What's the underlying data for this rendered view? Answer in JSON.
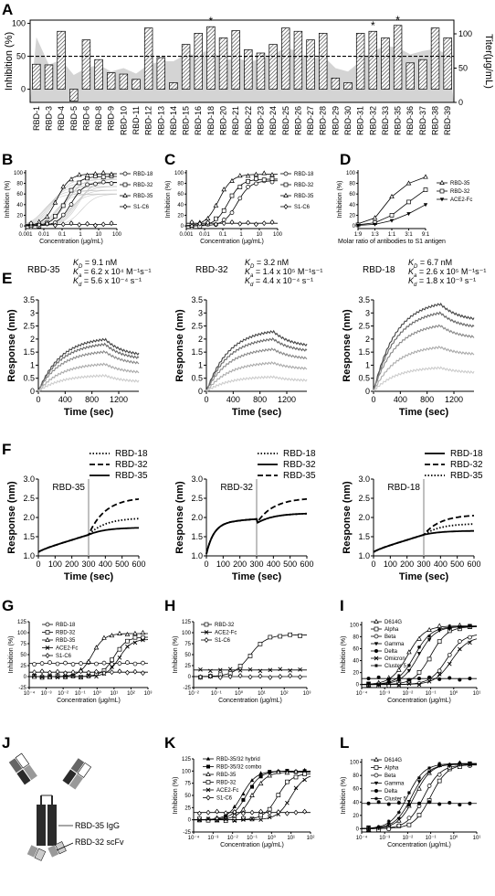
{
  "panel_letters": [
    "A",
    "B",
    "C",
    "D",
    "E",
    "F",
    "G",
    "H",
    "I",
    "J",
    "K",
    "L"
  ],
  "chart_data": [
    {
      "id": "A",
      "type": "bar",
      "categories": [
        "RBD-1",
        "RBD-3",
        "RBD-4",
        "RBD-5",
        "RBD-6",
        "RBD-8",
        "RBD-9",
        "RBD-10",
        "RBD-11",
        "RBD-12",
        "RBD-13",
        "RBD-14",
        "RBD-15",
        "RBD-16",
        "RBD-18",
        "RBD-20",
        "RBD-21",
        "RBD-22",
        "RBD-23",
        "RBD-24",
        "RBD-25",
        "RBD-26",
        "RBD-27",
        "RBD-28",
        "RBD-29",
        "RBD-30",
        "RBD-31",
        "RBD-32",
        "RBD-33",
        "RBD-35",
        "RBD-36",
        "RBD-37",
        "RBD-38",
        "RBD-39"
      ],
      "values": [
        38,
        37,
        88,
        -18,
        75,
        45,
        25,
        23,
        15,
        93,
        48,
        10,
        68,
        85,
        95,
        78,
        89,
        60,
        55,
        68,
        93,
        88,
        75,
        85,
        17,
        10,
        85,
        88,
        78,
        97,
        40,
        45,
        93,
        78
      ],
      "titer": [
        95,
        55,
        62,
        40,
        50,
        55,
        45,
        50,
        42,
        55,
        60,
        60,
        70,
        70,
        78,
        60,
        65,
        60,
        62,
        70,
        80,
        74,
        62,
        68,
        50,
        45,
        60,
        75,
        82,
        80,
        70,
        75,
        78,
        70
      ],
      "starred": [
        "RBD-18",
        "RBD-32",
        "RBD-35"
      ],
      "ylabel": "Inhibition (%)",
      "y2label": "Titer(μg/mL)",
      "yticks": [
        0,
        50,
        100
      ],
      "y2ticks": [
        0,
        50,
        100
      ],
      "ylim": [
        -20,
        105
      ],
      "y2lim": [
        0,
        120
      ],
      "threshold": 50
    },
    {
      "id": "B",
      "type": "line",
      "xscale": "log",
      "xlabel": "Concentration (μg/mL)",
      "ylabel": "Inhibition (%)",
      "xticks": [
        "0.001",
        "0.01",
        "0.1",
        "1",
        "10",
        "100"
      ],
      "yticks": [
        0,
        20,
        40,
        60,
        80,
        100
      ],
      "ylim": [
        -5,
        105
      ],
      "series": [
        {
          "name": "RBD-18",
          "marker": "circle",
          "ec50": 0.3,
          "top": 82
        },
        {
          "name": "RBD-32",
          "marker": "square",
          "ec50": 0.15,
          "top": 93
        },
        {
          "name": "RBD-35",
          "marker": "triangle",
          "ec50": 0.05,
          "top": 98
        },
        {
          "name": "S1-C6",
          "marker": "diamond",
          "ec50": null,
          "top": 3
        }
      ]
    },
    {
      "id": "C",
      "type": "line",
      "xscale": "log",
      "xlabel": "Concentration (μg/mL)",
      "ylabel": "Inhibition (%)",
      "xticks": [
        "0.001",
        "0.01",
        "0.1",
        "1",
        "10",
        "100"
      ],
      "yticks": [
        0,
        20,
        40,
        60,
        80,
        100
      ],
      "ylim": [
        -5,
        105
      ],
      "series": [
        {
          "name": "RBD-18",
          "marker": "circle",
          "ec50": 0.6,
          "top": 85
        },
        {
          "name": "RBD-32",
          "marker": "square",
          "ec50": 0.2,
          "top": 88
        },
        {
          "name": "RBD-35",
          "marker": "triangle",
          "ec50": 0.06,
          "top": 97
        },
        {
          "name": "S1-C6",
          "marker": "diamond",
          "ec50": null,
          "top": 5
        }
      ]
    },
    {
      "id": "D",
      "type": "line",
      "xlabel": "Molar ratio of antibodies to S1 antigen",
      "ylabel": "Inhibition (%)",
      "xticks": [
        "1:9",
        "1:3",
        "1:1",
        "3:1",
        "9:1"
      ],
      "yticks": [
        0,
        20,
        40,
        60,
        80,
        100
      ],
      "ylim": [
        -5,
        105
      ],
      "series": [
        {
          "name": "RBD-35",
          "marker": "triangle",
          "values": [
            4,
            15,
            55,
            80,
            92
          ]
        },
        {
          "name": "RBD-32",
          "marker": "square",
          "values": [
            2,
            6,
            20,
            45,
            68
          ]
        },
        {
          "name": "ACE2-Fc",
          "marker": "triangle-down",
          "values": [
            1,
            3,
            10,
            23,
            40
          ]
        }
      ]
    },
    {
      "id": "E1",
      "type": "line",
      "name": "RBD-35",
      "kd": "K",
      "kd_sub": "D",
      "kd_val": " = 9.1 nM",
      "ka": "K",
      "ka_sub": "a",
      "ka_val": " = 6.2 x 10⁴ M⁻¹s⁻¹",
      "kdis": "K",
      "kdis_sub": "d",
      "kdis_val": " = 5.6 x 10⁻⁴ s⁻¹",
      "xlabel": "Time (sec)",
      "ylabel": "Response (nm)",
      "xticks": [
        0,
        400,
        800,
        1200
      ],
      "yticks": [
        0,
        0.5,
        1,
        1.5,
        2,
        2.5,
        3,
        3.5
      ],
      "xlim": [
        0,
        1500
      ],
      "ylim": [
        0,
        3.5
      ],
      "peaks": [
        2.0,
        1.8,
        1.5,
        1.05,
        0.6
      ],
      "dissociation_end": [
        1.35,
        1.2,
        1.0,
        0.7,
        0.35
      ]
    },
    {
      "id": "E2",
      "type": "line",
      "name": "RBD-32",
      "kd": "K",
      "kd_sub": "D",
      "kd_val": " = 3.2 nM",
      "ka": "K",
      "ka_sub": "a",
      "ka_val": " = 1.4 x 10⁵ M⁻¹s⁻¹",
      "kdis": "K",
      "kdis_sub": "d",
      "kdis_val": " = 4.4 x 10⁻⁴ s⁻¹",
      "xlabel": "Time (sec)",
      "ylabel": "Response (nm)",
      "xticks": [
        0,
        400,
        800,
        1200
      ],
      "yticks": [
        0,
        0.5,
        1,
        1.5,
        2,
        2.5,
        3,
        3.5
      ],
      "xlim": [
        0,
        1500
      ],
      "ylim": [
        0,
        3.5
      ],
      "peaks": [
        2.3,
        2.0,
        1.6,
        1.1,
        0.55
      ],
      "dissociation_end": [
        1.7,
        1.5,
        1.2,
        0.85,
        0.4
      ]
    },
    {
      "id": "E3",
      "type": "line",
      "name": "RBD-18",
      "kd": "K",
      "kd_sub": "D",
      "kd_val": " = 6.7 nM",
      "ka": "K",
      "ka_sub": "a",
      "ka_val": " = 2.6 x 10⁵ M⁻¹s⁻¹",
      "kdis": "K",
      "kdis_sub": "d",
      "kdis_val": " = 1.8 x 10⁻³ s⁻¹",
      "xlabel": "Time (sec)",
      "ylabel": "Response (nm)",
      "xticks": [
        0,
        400,
        800,
        1200
      ],
      "yticks": [
        0,
        0.5,
        1,
        1.5,
        2,
        2.5,
        3,
        3.5
      ],
      "xlim": [
        0,
        1500
      ],
      "ylim": [
        0,
        3.5
      ],
      "peaks": [
        3.35,
        3.0,
        2.5,
        1.7,
        0.9
      ],
      "dissociation_end": [
        2.7,
        2.4,
        2.0,
        1.4,
        0.7
      ]
    },
    {
      "id": "F1",
      "type": "line",
      "name": "RBD-35",
      "xlabel": "Time (sec)",
      "ylabel": "Response (nm)",
      "xticks": [
        0,
        100,
        200,
        300,
        400,
        500,
        600
      ],
      "yticks": [
        1.0,
        1.5,
        2.0,
        2.5,
        3.0
      ],
      "xlim": [
        0,
        600
      ],
      "ylim": [
        1.0,
        3.0
      ],
      "series": [
        {
          "name": "RBD-18",
          "style": "dotted",
          "end": 1.97
        },
        {
          "name": "RBD-32",
          "style": "dashed",
          "end": 2.48
        },
        {
          "name": "RBD-35",
          "style": "solid",
          "end": 1.73
        }
      ]
    },
    {
      "id": "F2",
      "type": "line",
      "name": "RBD-32",
      "xlabel": "Time (sec)",
      "ylabel": "Response (nm)",
      "xticks": [
        0,
        100,
        200,
        300,
        400,
        500,
        600
      ],
      "yticks": [
        1.0,
        1.5,
        2.0,
        2.5,
        3.0
      ],
      "xlim": [
        0,
        600
      ],
      "ylim": [
        1.0,
        3.0
      ],
      "series": [
        {
          "name": "RBD-18",
          "style": "dotted",
          "end": 2.1
        },
        {
          "name": "RBD-32",
          "style": "solid",
          "end": 2.1
        },
        {
          "name": "RBD-35",
          "style": "dashed",
          "end": 2.48
        }
      ]
    },
    {
      "id": "F3",
      "type": "line",
      "name": "RBD-18",
      "xlabel": "Time (sec)",
      "ylabel": "Response (nm)",
      "xticks": [
        0,
        100,
        200,
        300,
        400,
        500,
        600
      ],
      "yticks": [
        1.0,
        1.5,
        2.0,
        2.5,
        3.0
      ],
      "xlim": [
        0,
        600
      ],
      "ylim": [
        1.0,
        3.0
      ],
      "series": [
        {
          "name": "RBD-18",
          "style": "solid",
          "end": 1.65
        },
        {
          "name": "RBD-32",
          "style": "dashed",
          "end": 2.05
        },
        {
          "name": "RBD-35",
          "style": "dotted",
          "end": 1.83
        }
      ]
    },
    {
      "id": "G",
      "type": "line",
      "xscale": "log",
      "xlabel": "Concentration (μg/mL)",
      "ylabel": "Inhibition (%)",
      "xticks": [
        "10⁻⁴",
        "10⁻³",
        "10⁻²",
        "10⁻¹",
        "10⁰",
        "10¹",
        "10²",
        "10³"
      ],
      "yticks": [
        -25,
        0,
        25,
        50,
        75,
        100,
        125
      ],
      "ylim": [
        -25,
        125
      ],
      "series": [
        {
          "name": "RBD-18",
          "marker": "circle",
          "ec50": null,
          "top": 30
        },
        {
          "name": "RBD-32",
          "marker": "square",
          "ec50": 10,
          "top": 90
        },
        {
          "name": "RBD-35",
          "marker": "triangle",
          "ec50": 0.5,
          "top": 98
        },
        {
          "name": "ACE2-Fc",
          "marker": "x",
          "ec50": 20,
          "top": 85
        },
        {
          "name": "S1-C6",
          "marker": "diamond",
          "ec50": null,
          "top": 10
        }
      ]
    },
    {
      "id": "H",
      "type": "line",
      "xscale": "log",
      "xlabel": "Concentration (μg/mL)",
      "ylabel": "Inhibition (%)",
      "xticks": [
        "10⁻²",
        "10⁻¹",
        "10⁰",
        "10¹",
        "10²",
        "10³"
      ],
      "yticks": [
        -25,
        0,
        25,
        50,
        75,
        100,
        125
      ],
      "ylim": [
        -25,
        125
      ],
      "series": [
        {
          "name": "RBD-32",
          "marker": "square",
          "ec50": 3,
          "top": 95
        },
        {
          "name": "ACE2-Fc",
          "marker": "x",
          "ec50": null,
          "top": 15
        },
        {
          "name": "S1-C6",
          "marker": "diamond",
          "ec50": null,
          "top": 0
        }
      ]
    },
    {
      "id": "I",
      "type": "line",
      "xscale": "log",
      "xlabel": "Concentration (μg/mL)",
      "ylabel": "Inhibition (%)",
      "xticks": [
        "10⁻⁴",
        "10⁻³",
        "10⁻²",
        "10⁻¹",
        "10⁰",
        "10¹"
      ],
      "yticks": [
        0,
        20,
        40,
        60,
        80,
        100
      ],
      "ylim": [
        -5,
        105
      ],
      "series": [
        {
          "name": "D614G",
          "marker": "triangle",
          "ec50": 0.01,
          "top": 98
        },
        {
          "name": "Alpha",
          "marker": "square",
          "ec50": 0.1,
          "top": 97
        },
        {
          "name": "Beta",
          "marker": "circle",
          "ec50": 0.5,
          "top": 85
        },
        {
          "name": "Gamma",
          "marker": "triangle-down",
          "ec50": 0.03,
          "top": 97
        },
        {
          "name": "Delta",
          "marker": "dot",
          "ec50": null,
          "top": 10
        },
        {
          "name": "Omicron",
          "marker": "x",
          "ec50": 0.8,
          "top": 80
        },
        {
          "name": "Cluster 5",
          "marker": "star",
          "ec50": 0.02,
          "top": 97
        }
      ]
    },
    {
      "id": "K",
      "type": "line",
      "xscale": "log",
      "xlabel": "Concentration (μg/mL)",
      "ylabel": "Inhibition (%)",
      "xticks": [
        "10⁻⁴",
        "10⁻³",
        "10⁻²",
        "10⁻¹",
        "10⁰",
        "10¹",
        "10²"
      ],
      "yticks": [
        -25,
        0,
        25,
        50,
        75,
        100,
        125
      ],
      "ylim": [
        -25,
        125
      ],
      "series": [
        {
          "name": "RBD-35/32 hybrid",
          "marker": "triangle-filled",
          "ec50": 0.03,
          "top": 100
        },
        {
          "name": "RBD-35/32 combo",
          "marker": "square-filled",
          "ec50": 0.05,
          "top": 100
        },
        {
          "name": "RBD-35",
          "marker": "triangle",
          "ec50": 0.1,
          "top": 98
        },
        {
          "name": "RBD-32",
          "marker": "square",
          "ec50": 2,
          "top": 95
        },
        {
          "name": "ACE2-Fc",
          "marker": "x",
          "ec50": 10,
          "top": 95
        },
        {
          "name": "S1-C6",
          "marker": "diamond",
          "ec50": null,
          "top": 15
        }
      ]
    },
    {
      "id": "L",
      "type": "line",
      "xscale": "log",
      "xlabel": "Concentration (μg/mL)",
      "ylabel": "Inhibition (%)",
      "xticks": [
        "10⁻⁴",
        "10⁻³",
        "10⁻²",
        "10⁻¹",
        "10⁰",
        "10¹"
      ],
      "yticks": [
        0,
        20,
        40,
        60,
        80,
        100
      ],
      "ylim": [
        -5,
        105
      ],
      "series": [
        {
          "name": "D614G",
          "marker": "triangle",
          "ec50": 0.02,
          "top": 98
        },
        {
          "name": "Alpha",
          "marker": "square",
          "ec50": 0.1,
          "top": 97
        },
        {
          "name": "Beta",
          "marker": "circle",
          "ec50": 0.05,
          "top": 96
        },
        {
          "name": "Gamma",
          "marker": "triangle-down",
          "ec50": 0.015,
          "top": 97
        },
        {
          "name": "Delta",
          "marker": "dot",
          "ec50": null,
          "top": 38
        },
        {
          "name": "Cluster 5",
          "marker": "star",
          "ec50": 0.01,
          "top": 98
        }
      ]
    }
  ],
  "diagram_J": {
    "label_1": "RBD-35 IgG",
    "label_2": "RBD-32 scFv"
  }
}
